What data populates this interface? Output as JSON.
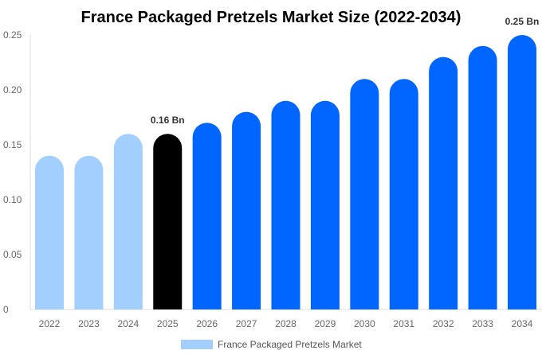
{
  "chart_data": {
    "type": "bar",
    "title": "France Packaged Pretzels Market Size (2022-2034)",
    "xlabel": "",
    "ylabel": "",
    "categories": [
      "2022",
      "2023",
      "2024",
      "2025",
      "2026",
      "2027",
      "2028",
      "2029",
      "2030",
      "2031",
      "2032",
      "2033",
      "2034"
    ],
    "series": [
      {
        "name": "France Packaged Pretzels Market",
        "values": [
          0.14,
          0.14,
          0.16,
          0.16,
          0.17,
          0.18,
          0.19,
          0.19,
          0.21,
          0.21,
          0.23,
          0.24,
          0.25
        ]
      }
    ],
    "bar_colors": [
      "#a3cfff",
      "#a3cfff",
      "#a3cfff",
      "#000000",
      "#0066ff",
      "#0066ff",
      "#0066ff",
      "#0066ff",
      "#0066ff",
      "#0066ff",
      "#0066ff",
      "#0066ff",
      "#0066ff"
    ],
    "data_labels": [
      {
        "category": "2025",
        "text": "0.16 Bn"
      },
      {
        "category": "2034",
        "text": "0.25 Bn"
      }
    ],
    "ylim": [
      0,
      0.25
    ],
    "yticks": [
      "0",
      "0.05",
      "0.10",
      "0.15",
      "0.20",
      "0.25"
    ],
    "grid": false,
    "legend": {
      "position": "bottom",
      "color": "#a3cfff"
    }
  }
}
